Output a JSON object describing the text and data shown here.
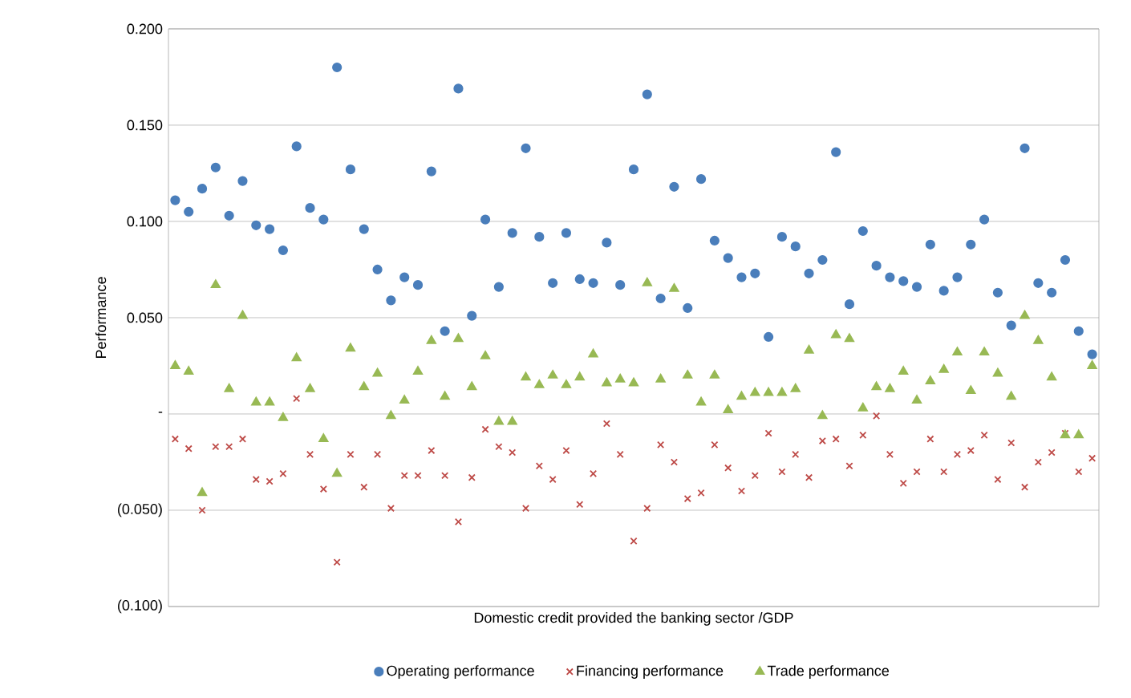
{
  "chart_data": {
    "type": "scatter",
    "xlabel": "Domestic credit provided the banking sector /GDP",
    "ylabel": "Performance",
    "categories": [
      null,
      null,
      null,
      null,
      null,
      null,
      null,
      null,
      null,
      null,
      null,
      null,
      null,
      null,
      null,
      null,
      null,
      null,
      null,
      null,
      null,
      null,
      null,
      null,
      null,
      null,
      null,
      null,
      null,
      null,
      null,
      null,
      null,
      null,
      null,
      null,
      null,
      null,
      null,
      null,
      null,
      null,
      null,
      null,
      null,
      null,
      null,
      null,
      null,
      null,
      null,
      null,
      null,
      null,
      null,
      null,
      null,
      null,
      null,
      null,
      null,
      null,
      null,
      null,
      null,
      null,
      null,
      null,
      null
    ],
    "ylim": [
      -0.1,
      0.2
    ],
    "yticks": [
      {
        "value": -0.1,
        "label": "(0.100)"
      },
      {
        "value": -0.05,
        "label": "(0.050)"
      },
      {
        "value": 0,
        "label": "-"
      },
      {
        "value": 0.05,
        "label": "0.050"
      },
      {
        "value": 0.1,
        "label": "0.100"
      },
      {
        "value": 0.15,
        "label": "0.150"
      },
      {
        "value": 0.2,
        "label": "0.200"
      }
    ],
    "tick_labels": "y",
    "grid": "y",
    "legend": "bottom",
    "series": [
      {
        "name": "Operating performance",
        "color": "#4a7ebb",
        "marker": "circle",
        "values": [
          0.111,
          0.105,
          0.117,
          0.128,
          0.103,
          0.121,
          0.098,
          0.096,
          0.085,
          0.139,
          0.107,
          0.101,
          0.18,
          0.127,
          0.096,
          0.075,
          0.059,
          0.071,
          0.067,
          0.126,
          0.043,
          0.169,
          0.051,
          0.101,
          0.066,
          0.094,
          0.138,
          0.092,
          0.068,
          0.094,
          0.07,
          0.068,
          0.089,
          0.067,
          0.127,
          0.166,
          0.06,
          0.118,
          0.055,
          0.122,
          0.09,
          0.081,
          0.071,
          0.073,
          0.04,
          0.092,
          0.087,
          0.073,
          0.08,
          0.136,
          0.057,
          0.095,
          0.077,
          0.071,
          0.069,
          0.066,
          0.088,
          0.064,
          0.071,
          0.088,
          0.101,
          0.063,
          0.046,
          0.138,
          0.068,
          0.063,
          0.08,
          0.043,
          0.031
        ]
      },
      {
        "name": "Financing performance",
        "color": "#be4b48",
        "marker": "cross",
        "values": [
          -0.013,
          -0.018,
          -0.05,
          -0.017,
          -0.017,
          -0.013,
          -0.034,
          -0.035,
          -0.031,
          0.008,
          -0.021,
          -0.039,
          -0.077,
          -0.021,
          -0.038,
          -0.021,
          -0.049,
          -0.032,
          -0.032,
          -0.019,
          -0.032,
          -0.056,
          -0.033,
          -0.008,
          -0.017,
          -0.02,
          -0.049,
          -0.027,
          -0.034,
          -0.019,
          -0.047,
          -0.031,
          -0.005,
          -0.021,
          -0.066,
          -0.049,
          -0.016,
          -0.025,
          -0.044,
          -0.041,
          -0.016,
          -0.028,
          -0.04,
          -0.032,
          -0.01,
          -0.03,
          -0.021,
          -0.033,
          -0.014,
          -0.013,
          -0.027,
          -0.011,
          -0.001,
          -0.021,
          -0.036,
          -0.03,
          -0.013,
          -0.03,
          -0.021,
          -0.019,
          -0.011,
          -0.034,
          -0.015,
          -0.038,
          -0.025,
          -0.02,
          -0.01,
          -0.03,
          -0.023
        ]
      },
      {
        "name": "Trade performance",
        "color": "#98b954",
        "marker": "triangle",
        "values": [
          0.025,
          0.022,
          -0.041,
          0.067,
          0.013,
          0.051,
          0.006,
          0.006,
          -0.002,
          0.029,
          0.013,
          -0.013,
          -0.031,
          0.034,
          0.014,
          0.021,
          -0.001,
          0.007,
          0.022,
          0.038,
          0.009,
          0.039,
          0.014,
          0.03,
          -0.004,
          -0.004,
          0.019,
          0.015,
          0.02,
          0.015,
          0.019,
          0.031,
          0.016,
          0.018,
          0.016,
          0.068,
          0.018,
          0.065,
          0.02,
          0.006,
          0.02,
          0.002,
          0.009,
          0.011,
          0.011,
          0.011,
          0.013,
          0.033,
          -0.001,
          0.041,
          0.039,
          0.003,
          0.014,
          0.013,
          0.022,
          0.007,
          0.017,
          0.023,
          0.032,
          0.012,
          0.032,
          0.021,
          0.009,
          0.051,
          0.038,
          0.019,
          -0.011,
          -0.011,
          0.025
        ]
      }
    ]
  }
}
